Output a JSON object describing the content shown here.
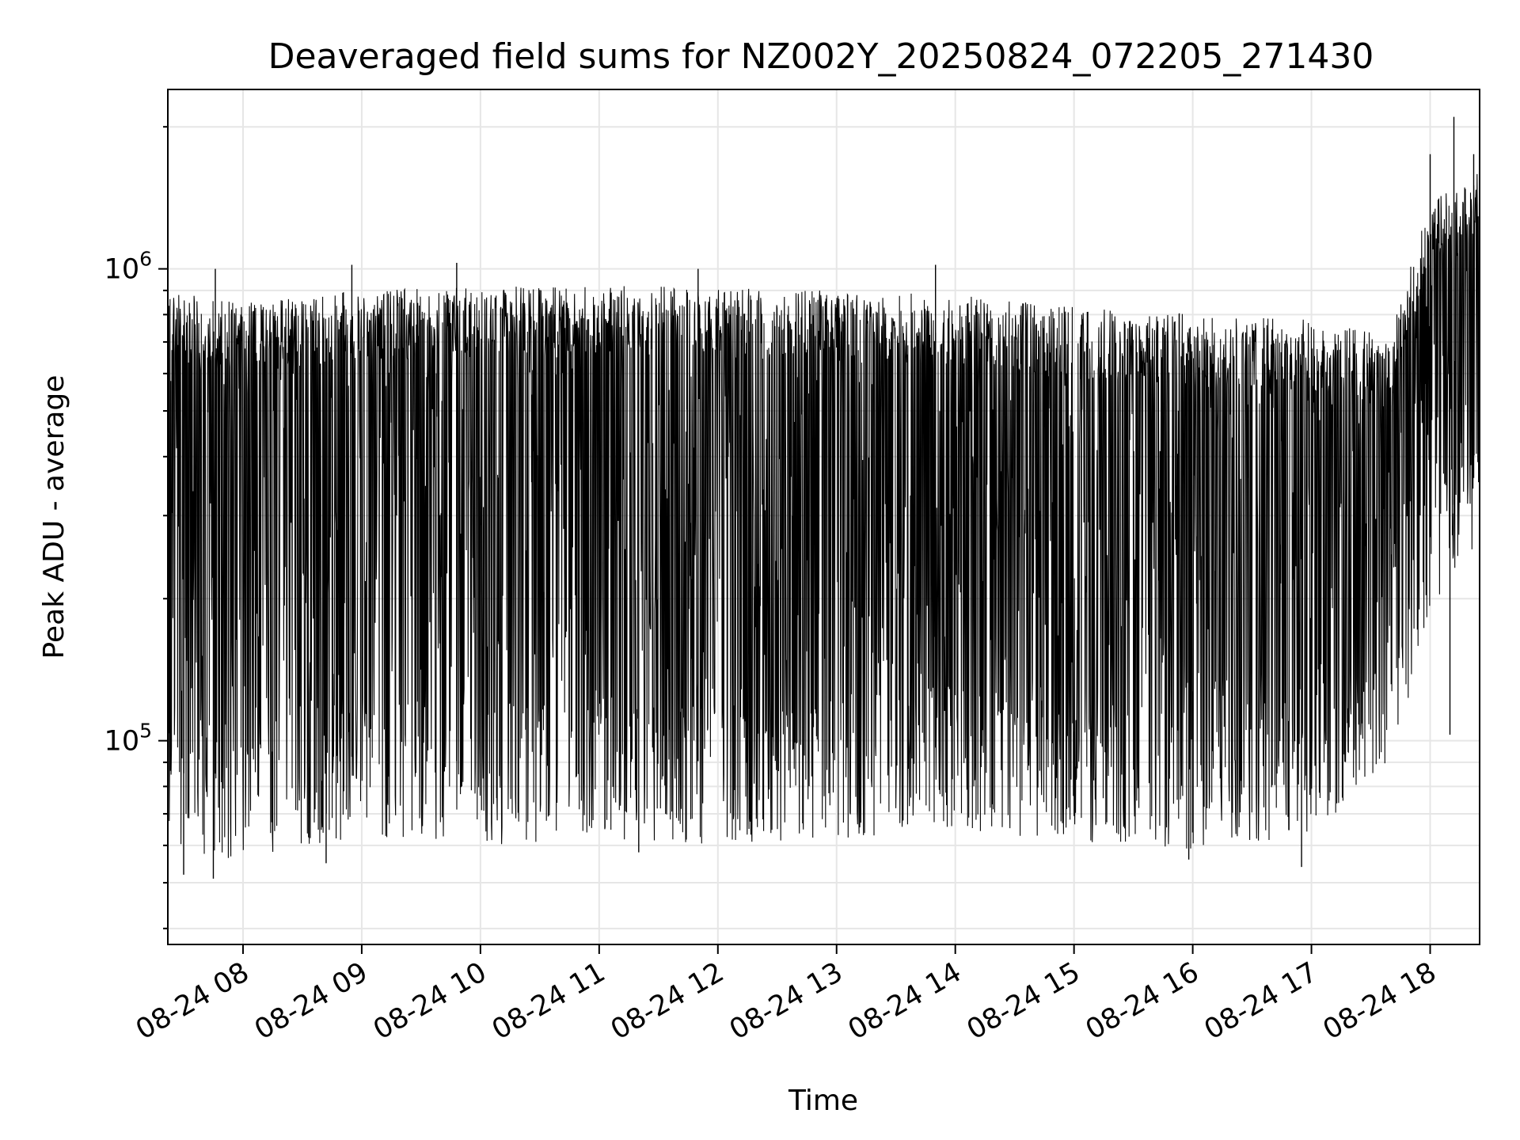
{
  "chart_data": {
    "type": "line",
    "title": "Deaveraged field sums for NZ002Y_20250824_072205_271430",
    "xlabel": "Time",
    "ylabel": "Peak ADU - average",
    "yscale": "log",
    "xlim": [
      "08-24 07:22",
      "08-24 18:25"
    ],
    "ylim": [
      37000,
      2400000
    ],
    "x_tick_labels": [
      "08-24 08",
      "08-24 09",
      "08-24 10",
      "08-24 11",
      "08-24 12",
      "08-24 13",
      "08-24 14",
      "08-24 15",
      "08-24 16",
      "08-24 17",
      "08-24 18"
    ],
    "y_tick_labels": [
      {
        "base": "10",
        "exp": "5",
        "value": 100000
      },
      {
        "base": "10",
        "exp": "6",
        "value": 1000000
      }
    ],
    "grid": true,
    "line_color": "#000000",
    "series": [
      {
        "x_start": "08-24 07:22",
        "x_end": "08-24 18:25",
        "profile": [
          {
            "time": "08-24 07:22",
            "upper": 900000,
            "lower": 60000
          },
          {
            "time": "08-24 08:00",
            "upper": 850000,
            "lower": 55000
          },
          {
            "time": "08-24 08:30",
            "upper": 880000,
            "lower": 60000
          },
          {
            "time": "08-24 09:00",
            "upper": 900000,
            "lower": 62000
          },
          {
            "time": "08-24 10:00",
            "upper": 920000,
            "lower": 60000
          },
          {
            "time": "08-24 11:00",
            "upper": 920000,
            "lower": 62000
          },
          {
            "time": "08-24 12:00",
            "upper": 920000,
            "lower": 60000
          },
          {
            "time": "08-24 13:00",
            "upper": 900000,
            "lower": 62000
          },
          {
            "time": "08-24 14:00",
            "upper": 880000,
            "lower": 65000
          },
          {
            "time": "08-24 15:00",
            "upper": 830000,
            "lower": 60000
          },
          {
            "time": "08-24 16:00",
            "upper": 800000,
            "lower": 58000
          },
          {
            "time": "08-24 17:00",
            "upper": 780000,
            "lower": 62000
          },
          {
            "time": "08-24 17:40",
            "upper": 720000,
            "lower": 90000
          },
          {
            "time": "08-24 18:00",
            "upper": 1400000,
            "lower": 180000
          },
          {
            "time": "08-24 18:25",
            "upper": 1600000,
            "lower": 250000
          }
        ],
        "peaks": [
          {
            "time": "08-24 07:46",
            "value": 1000000
          },
          {
            "time": "08-24 08:55",
            "value": 1020000
          },
          {
            "time": "08-24 09:48",
            "value": 1030000
          },
          {
            "time": "08-24 11:50",
            "value": 1000000
          },
          {
            "time": "08-24 13:50",
            "value": 1020000
          },
          {
            "time": "08-24 18:00",
            "value": 1750000
          },
          {
            "time": "08-24 18:12",
            "value": 2100000
          },
          {
            "time": "08-24 18:22",
            "value": 1750000
          }
        ],
        "dips": [
          {
            "time": "08-24 07:30",
            "value": 52000
          },
          {
            "time": "08-24 07:45",
            "value": 51000
          },
          {
            "time": "08-24 08:42",
            "value": 55000
          },
          {
            "time": "08-24 11:20",
            "value": 58000
          },
          {
            "time": "08-24 15:58",
            "value": 56000
          },
          {
            "time": "08-24 16:55",
            "value": 54000
          },
          {
            "time": "08-24 18:10",
            "value": 103000
          }
        ]
      }
    ]
  }
}
